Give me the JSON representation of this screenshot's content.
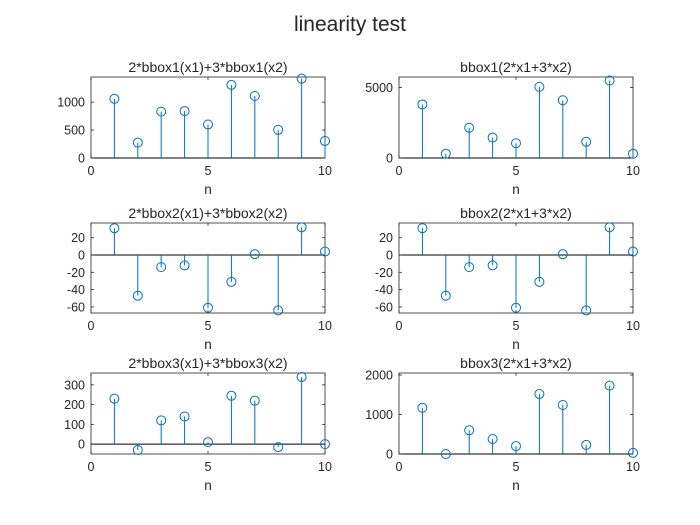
{
  "figure": {
    "suptitle": "linearity test"
  },
  "style": {
    "stem_color": "#0072BD",
    "axis_color": "#262626",
    "background": "#ffffff"
  },
  "chart_data": [
    {
      "type": "stem",
      "title": "2*bbox1(x1)+3*bbox1(x2)",
      "xlabel": "n",
      "ylabel": "",
      "xlim": [
        0,
        10
      ],
      "ylim": [
        0,
        1450
      ],
      "xticks": [
        0,
        5,
        10
      ],
      "yticks": [
        0,
        500,
        1000
      ],
      "x": [
        1,
        2,
        3,
        4,
        5,
        6,
        7,
        8,
        9,
        10
      ],
      "y": [
        1060,
        275,
        830,
        840,
        600,
        1310,
        1110,
        505,
        1420,
        305
      ]
    },
    {
      "type": "stem",
      "title": "bbox1(2*x1+3*x2)",
      "xlabel": "n",
      "ylabel": "",
      "xlim": [
        0,
        10
      ],
      "ylim": [
        0,
        5750
      ],
      "xticks": [
        0,
        5,
        10
      ],
      "yticks": [
        0,
        5000
      ],
      "x": [
        1,
        2,
        3,
        4,
        5,
        6,
        7,
        8,
        9,
        10
      ],
      "y": [
        3800,
        300,
        2150,
        1450,
        1050,
        5050,
        4100,
        1150,
        5500,
        300
      ]
    },
    {
      "type": "stem",
      "title": "2*bbox2(x1)+3*bbox2(x2)",
      "xlabel": "n",
      "ylabel": "",
      "xlim": [
        0,
        10
      ],
      "ylim": [
        -67,
        37
      ],
      "xticks": [
        0,
        5,
        10
      ],
      "yticks": [
        -60,
        -40,
        -20,
        0,
        20
      ],
      "x": [
        1,
        2,
        3,
        4,
        5,
        6,
        7,
        8,
        9,
        10
      ],
      "y": [
        31,
        -47,
        -14,
        -12,
        -61,
        -31,
        1,
        -64,
        32,
        4
      ]
    },
    {
      "type": "stem",
      "title": "bbox2(2*x1+3*x2)",
      "xlabel": "n",
      "ylabel": "",
      "xlim": [
        0,
        10
      ],
      "ylim": [
        -67,
        37
      ],
      "xticks": [
        0,
        5,
        10
      ],
      "yticks": [
        -60,
        -40,
        -20,
        0,
        20
      ],
      "x": [
        1,
        2,
        3,
        4,
        5,
        6,
        7,
        8,
        9,
        10
      ],
      "y": [
        31,
        -47,
        -14,
        -12,
        -61,
        -31,
        1,
        -64,
        32,
        4
      ]
    },
    {
      "type": "stem",
      "title": "2*bbox3(x1)+3*bbox3(x2)",
      "xlabel": "n",
      "ylabel": "",
      "xlim": [
        0,
        10
      ],
      "ylim": [
        -50,
        360
      ],
      "xticks": [
        0,
        5,
        10
      ],
      "yticks": [
        0,
        100,
        200,
        300
      ],
      "x": [
        1,
        2,
        3,
        4,
        5,
        6,
        7,
        8,
        9,
        10
      ],
      "y": [
        230,
        -30,
        120,
        140,
        10,
        245,
        220,
        -15,
        340,
        0
      ]
    },
    {
      "type": "stem",
      "title": "bbox3(2*x1+3*x2)",
      "xlabel": "n",
      "ylabel": "",
      "xlim": [
        0,
        10
      ],
      "ylim": [
        0,
        2050
      ],
      "xticks": [
        0,
        5,
        10
      ],
      "yticks": [
        0,
        1000,
        2000
      ],
      "x": [
        1,
        2,
        3,
        4,
        5,
        6,
        7,
        8,
        9,
        10
      ],
      "y": [
        1170,
        0,
        600,
        380,
        200,
        1520,
        1240,
        230,
        1730,
        30
      ]
    }
  ]
}
